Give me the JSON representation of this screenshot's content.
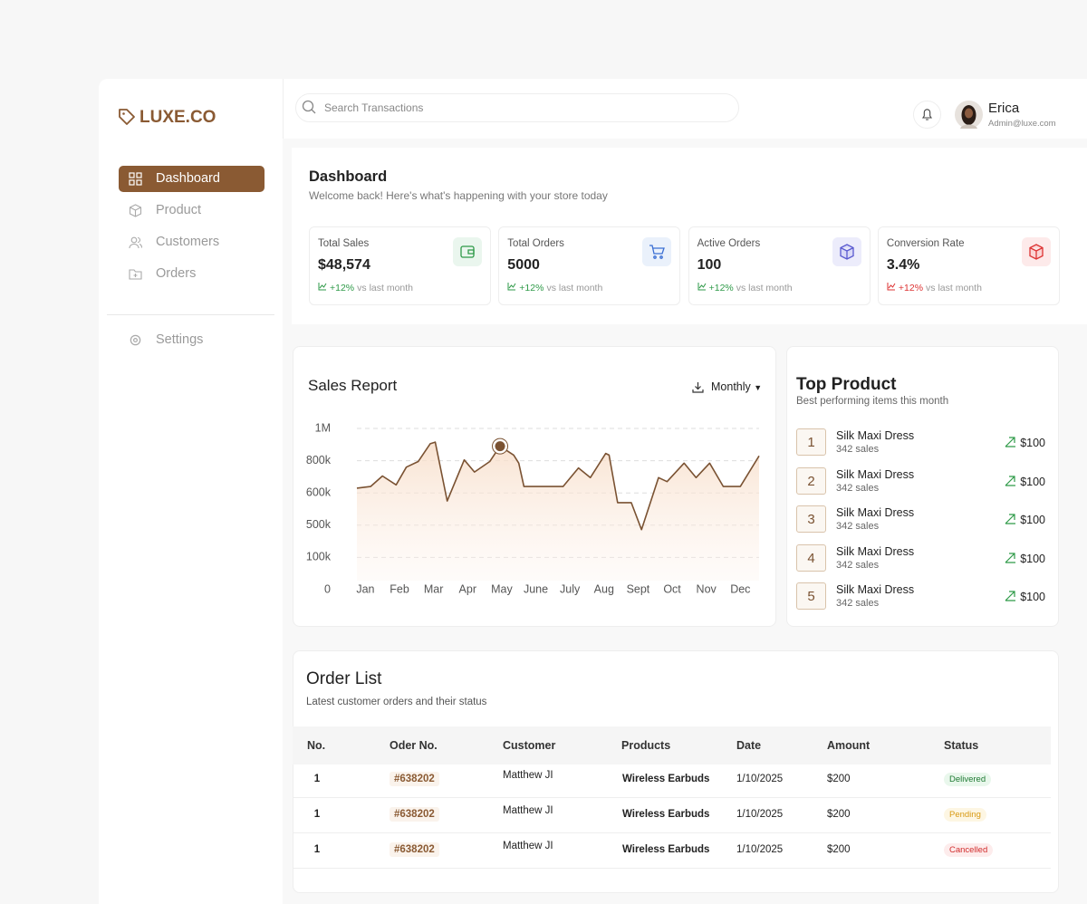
{
  "brand": "LUXE.CO",
  "nav": [
    "Dashboard",
    "Product",
    "Customers",
    "Orders"
  ],
  "settings": "Settings",
  "search_placeholder": "Search Transactions",
  "user": {
    "name": "Erica",
    "email": "Admin@luxe.com"
  },
  "page": {
    "title": "Dashboard",
    "subtitle": "Welcome back! Here's what's happening with your store today"
  },
  "stats": [
    {
      "label": "Total Sales",
      "value": "$48,574",
      "change": "+12%",
      "note": "vs last month"
    },
    {
      "label": "Total Orders",
      "value": "5000",
      "change": "+12%",
      "note": "vs last month"
    },
    {
      "label": "Active Orders",
      "value": "100",
      "change": "+12%",
      "note": "vs last month"
    },
    {
      "label": "Conversion Rate",
      "value": "3.4%",
      "change": "+12%",
      "note": "vs last month"
    }
  ],
  "chart_data": {
    "type": "line",
    "title": "Sales Report",
    "period": "Monthly",
    "color": "#7a5232",
    "highlighted_point": 12,
    "x": [
      0.75,
      1.15,
      1.5,
      1.9,
      2.2,
      2.55,
      2.9,
      3.05,
      3.4,
      3.9,
      4.2,
      4.65,
      4.95,
      5.35,
      5.5,
      5.65,
      6.8,
      7.25,
      7.6,
      8.05,
      8.15,
      8.4,
      8.8,
      9.1,
      9.6,
      9.85,
      10.35,
      10.7,
      11.1,
      11.5,
      12,
      12.55
    ],
    "values": [
      630000,
      640000,
      705000,
      650000,
      760000,
      795000,
      905000,
      915000,
      575000,
      805000,
      730000,
      795000,
      890000,
      835000,
      785000,
      640000,
      640000,
      755000,
      695000,
      845000,
      835000,
      570000,
      570000,
      445000,
      695000,
      670000,
      785000,
      695000,
      785000,
      640000,
      640000,
      830000
    ],
    "xlim": [
      0.75,
      12.55
    ],
    "xticks": [
      {
        "value": 1,
        "label": "Jan"
      },
      {
        "value": 2,
        "label": "Feb"
      },
      {
        "value": 3,
        "label": "Mar"
      },
      {
        "value": 4,
        "label": "Apr"
      },
      {
        "value": 5,
        "label": "May"
      },
      {
        "value": 6,
        "label": "June"
      },
      {
        "value": 7,
        "label": "July"
      },
      {
        "value": 8,
        "label": "Aug"
      },
      {
        "value": 9,
        "label": "Sept"
      },
      {
        "value": 10,
        "label": "Oct"
      },
      {
        "value": 11,
        "label": "Nov"
      },
      {
        "value": 12,
        "label": "Dec"
      }
    ],
    "ylim": [
      0,
      1000000
    ],
    "yticks": [
      0,
      {
        "value": 100000,
        "label": "100k"
      },
      {
        "value": 500000,
        "label": "500k"
      },
      {
        "value": 600000,
        "label": "600k"
      },
      {
        "value": 800000,
        "label": "800k"
      },
      {
        "value": 1000000,
        "label": "1M"
      }
    ],
    "grid": true
  },
  "top_product": {
    "title": "Top Product",
    "subtitle": "Best performing items this month",
    "items": [
      {
        "rank": 1,
        "name": "Silk Maxi Dress",
        "sales": "342 sales",
        "amount": "$100"
      },
      {
        "rank": 2,
        "name": "Silk Maxi Dress",
        "sales": "342 sales",
        "amount": "$100"
      },
      {
        "rank": 3,
        "name": "Silk Maxi Dress",
        "sales": "342 sales",
        "amount": "$100"
      },
      {
        "rank": 4,
        "name": "Silk Maxi Dress",
        "sales": "342 sales",
        "amount": "$100"
      },
      {
        "rank": 5,
        "name": "Silk Maxi Dress",
        "sales": "342 sales",
        "amount": "$100"
      }
    ]
  },
  "orders": {
    "title": "Order List",
    "subtitle": "Latest customer orders and their status",
    "columns": [
      "No.",
      "Oder No.",
      "Customer",
      "Products",
      "Date",
      "Amount",
      "Status"
    ],
    "rows": [
      [
        "1",
        "#638202",
        "Matthew JI",
        "Wireless Earbuds",
        "1/10/2025",
        "$200",
        "Delivered"
      ],
      [
        "1",
        "#638202",
        "Matthew JI",
        "Wireless Earbuds",
        "1/10/2025",
        "$200",
        "Pending"
      ],
      [
        "1",
        "#638202",
        "Matthew JI",
        "Wireless Earbuds",
        "1/10/2025",
        "$200",
        "Cancelled"
      ]
    ]
  }
}
